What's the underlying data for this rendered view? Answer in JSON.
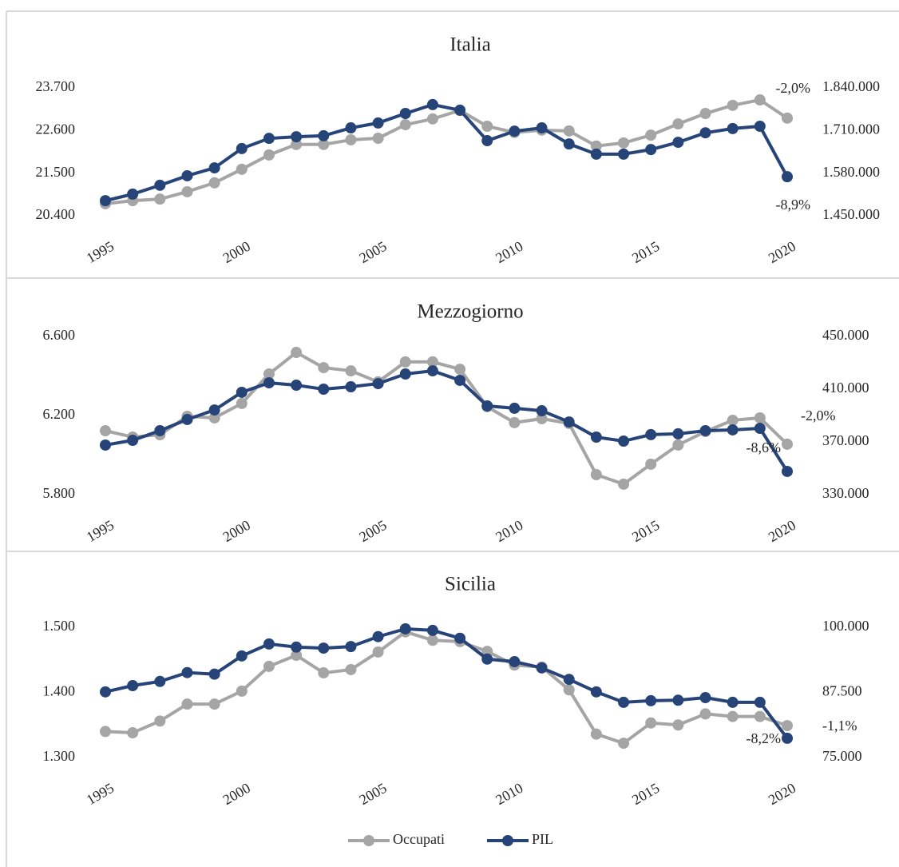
{
  "chart_data": [
    {
      "type": "line",
      "title": "Italia",
      "x": [
        1995,
        1996,
        1997,
        1998,
        1999,
        2000,
        2001,
        2002,
        2003,
        2004,
        2005,
        2006,
        2007,
        2008,
        2009,
        2010,
        2011,
        2012,
        2013,
        2014,
        2015,
        2016,
        2017,
        2018,
        2019,
        2020
      ],
      "xlim": [
        1995,
        2020
      ],
      "xticks": [
        1995,
        2000,
        2005,
        2010,
        2015,
        2020
      ],
      "ylim": [
        20400,
        23700
      ],
      "yticks": [
        {
          "value": 20400,
          "label": "20.400"
        },
        {
          "value": 21500,
          "label": "21.500"
        },
        {
          "value": 22600,
          "label": "22.600"
        },
        {
          "value": 23700,
          "label": "23.700"
        }
      ],
      "y2lim": [
        1450000,
        1840000
      ],
      "y2ticks": [
        {
          "value": 1450000,
          "label": "1.450.000"
        },
        {
          "value": 1580000,
          "label": "1.580.000"
        },
        {
          "value": 1710000,
          "label": "1.710.000"
        },
        {
          "value": 1840000,
          "label": "1.840.000"
        }
      ],
      "series": [
        {
          "color": "#a5a5a5",
          "values": [
            20710,
            20790,
            20830,
            21020,
            21250,
            21600,
            21970,
            22240,
            22240,
            22360,
            22400,
            22750,
            22900,
            23120,
            22710,
            22550,
            22610,
            22590,
            22200,
            22280,
            22480,
            22770,
            23040,
            23250,
            23390,
            22920
          ]
        },
        {
          "color": "#264478",
          "axis": "y2",
          "values": [
            1496000,
            1516000,
            1543000,
            1572000,
            1596000,
            1655000,
            1686000,
            1691000,
            1694000,
            1718000,
            1733000,
            1762000,
            1789000,
            1772000,
            1679000,
            1708000,
            1718000,
            1669000,
            1638000,
            1638000,
            1652000,
            1674000,
            1703000,
            1716000,
            1723000,
            1569000
          ]
        }
      ],
      "annotations": [
        "-2,0%",
        "-8,9%"
      ]
    },
    {
      "type": "line",
      "title": "Mezzogiorno",
      "x": [
        1995,
        1996,
        1997,
        1998,
        1999,
        2000,
        2001,
        2002,
        2003,
        2004,
        2005,
        2006,
        2007,
        2008,
        2009,
        2010,
        2011,
        2012,
        2013,
        2014,
        2015,
        2016,
        2017,
        2018,
        2019,
        2020
      ],
      "xlim": [
        1995,
        2020
      ],
      "xticks": [
        1995,
        2000,
        2005,
        2010,
        2015,
        2020
      ],
      "ylim": [
        5800,
        6600
      ],
      "yticks": [
        {
          "value": 5800,
          "label": "5.800"
        },
        {
          "value": 6200,
          "label": "6.200"
        },
        {
          "value": 6600,
          "label": "6.600"
        }
      ],
      "y2lim": [
        330000,
        450000
      ],
      "y2ticks": [
        {
          "value": 330000,
          "label": "330.000"
        },
        {
          "value": 370000,
          "label": "370.000"
        },
        {
          "value": 410000,
          "label": "410.000"
        },
        {
          "value": 450000,
          "label": "450.000"
        }
      ],
      "series": [
        {
          "color": "#a5a5a5",
          "values": [
            6123,
            6091,
            6103,
            6196,
            6188,
            6261,
            6410,
            6519,
            6442,
            6426,
            6370,
            6471,
            6471,
            6434,
            6244,
            6164,
            6184,
            6160,
            5901,
            5853,
            5954,
            6051,
            6119,
            6176,
            6188,
            6055
          ]
        },
        {
          "color": "#264478",
          "axis": "y2",
          "values": [
            367600,
            371200,
            378500,
            387000,
            394200,
            407600,
            414800,
            413000,
            410000,
            411800,
            414200,
            421500,
            423900,
            416700,
            397300,
            395500,
            393600,
            385100,
            373600,
            370600,
            375500,
            376100,
            378500,
            379100,
            380300,
            347600
          ]
        }
      ],
      "annotations": [
        "-2,0%",
        "-8,6%"
      ]
    },
    {
      "type": "line",
      "title": "Sicilia",
      "x": [
        1995,
        1996,
        1997,
        1998,
        1999,
        2000,
        2001,
        2002,
        2003,
        2004,
        2005,
        2006,
        2007,
        2008,
        2009,
        2010,
        2011,
        2012,
        2013,
        2014,
        2015,
        2016,
        2017,
        2018,
        2019,
        2020
      ],
      "xlim": [
        1995,
        2020
      ],
      "xticks": [
        1995,
        2000,
        2005,
        2010,
        2015,
        2020
      ],
      "ylim": [
        1300,
        1500
      ],
      "yticks": [
        {
          "value": 1300,
          "label": "1.300"
        },
        {
          "value": 1400,
          "label": "1.400"
        },
        {
          "value": 1500,
          "label": "1.500"
        }
      ],
      "y2lim": [
        75000,
        100000
      ],
      "y2ticks": [
        {
          "value": 75000,
          "label": "75.000"
        },
        {
          "value": 87500,
          "label": "87.500"
        },
        {
          "value": 100000,
          "label": "100.000"
        }
      ],
      "series": [
        {
          "name": "Occupati",
          "color": "#a5a5a5",
          "values": [
            1340,
            1338,
            1356,
            1382,
            1382,
            1402,
            1440,
            1457,
            1430,
            1435,
            1462,
            1493,
            1480,
            1478,
            1463,
            1442,
            1439,
            1404,
            1336,
            1322,
            1353,
            1350,
            1367,
            1363,
            1363,
            1349
          ]
        },
        {
          "name": "PIL",
          "color": "#264478",
          "axis": "y2",
          "values": [
            87600,
            88800,
            89600,
            91300,
            91000,
            94500,
            96800,
            96200,
            96000,
            96300,
            98200,
            99700,
            99400,
            97900,
            93900,
            93400,
            92200,
            90000,
            87600,
            85600,
            85900,
            86000,
            86500,
            85600,
            85600,
            78700
          ]
        }
      ],
      "annotations": [
        "-1,1%",
        "-8,2%"
      ]
    }
  ]
}
